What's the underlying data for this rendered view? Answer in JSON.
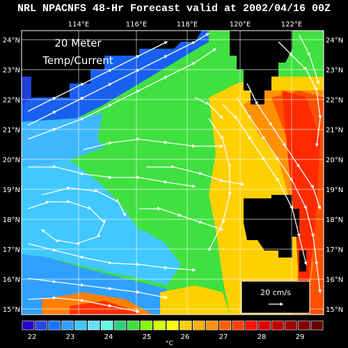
{
  "title": "NRL NPACNFS 48-Hr Forecast valid at 2002/04/16 00Z",
  "inset_title_line1": "20 Meter",
  "inset_title_line2": "Temp/Current",
  "x_ticks": [
    "114°E",
    "116°E",
    "118°E",
    "120°E",
    "122°E"
  ],
  "y_ticks": [
    "24°N",
    "23°N",
    "22°N",
    "21°N",
    "20°N",
    "19°N",
    "18°N",
    "17°N",
    "16°N",
    "15°N"
  ],
  "scale_label": "20 cm/s",
  "colorbar": {
    "unit": "°C",
    "ticks": [
      "22",
      "23",
      "24",
      "25",
      "26",
      "27",
      "28",
      "29"
    ],
    "colors": [
      "#2a00c8",
      "#2848e8",
      "#1874ff",
      "#30a0ff",
      "#40c8ff",
      "#60e0ff",
      "#60ffe0",
      "#30d080",
      "#40e040",
      "#80ff00",
      "#d0ff00",
      "#ffff00",
      "#ffd000",
      "#ffb000",
      "#ff9000",
      "#ff6000",
      "#ff4000",
      "#ff1000",
      "#e00000",
      "#c00000",
      "#a00000",
      "#800000",
      "#600000"
    ]
  }
}
